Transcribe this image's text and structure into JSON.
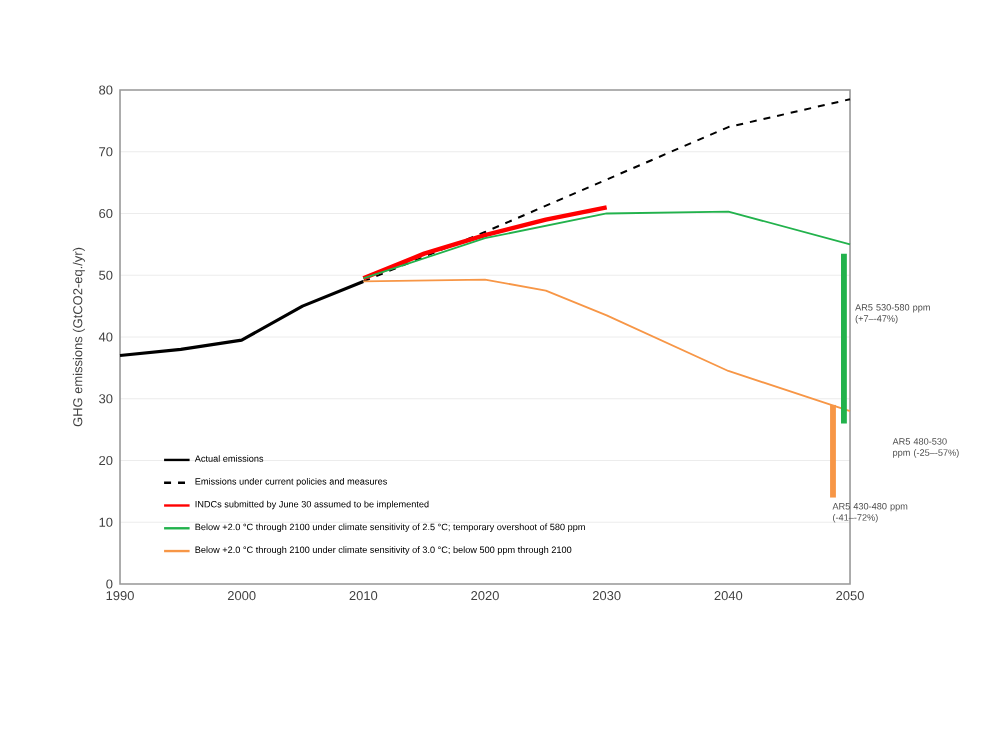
{
  "chart_data": {
    "type": "line",
    "ylabel": "GHG emissions (GtCO2-eq./yr)",
    "xlim": [
      1990,
      2050
    ],
    "xticks": [
      1990,
      2000,
      2010,
      2020,
      2030,
      2040,
      2050
    ],
    "ylim": [
      0,
      80
    ],
    "yticks": [
      0,
      10,
      20,
      30,
      40,
      50,
      60,
      70,
      80
    ],
    "grid": "y",
    "legend": "bottom left",
    "series": [
      {
        "name": "Actual emissions",
        "color": "#000000",
        "x": [
          1990,
          1995,
          2000,
          2005,
          2010
        ],
        "values": [
          37,
          38,
          39.5,
          45,
          49
        ]
      },
      {
        "name": "Emissions under current policies and measures",
        "color": "#000000",
        "line_style": "dashed",
        "x": [
          2010,
          2020,
          2030,
          2040,
          2050
        ],
        "values": [
          49,
          57,
          65.5,
          74,
          78.5
        ]
      },
      {
        "name": "INDCs submitted by June 30 assumed to be implemented",
        "color": "#ff0000",
        "x": [
          2010,
          2015,
          2020,
          2025,
          2030
        ],
        "values": [
          49.5,
          53.5,
          56.5,
          59,
          61
        ]
      },
      {
        "name": "Below +2.0 °C through 2100 under climate sensitivity of 2.5 °C; temporary overshoot of 580 ppm",
        "color": "#22b24c",
        "x": [
          2010,
          2020,
          2030,
          2040,
          2050
        ],
        "values": [
          49.5,
          56,
          60,
          60.3,
          55
        ]
      },
      {
        "name": "Below +2.0 °C through 2100 under climate sensitivity of 3.0 °C; below 500 ppm through 2100",
        "color": "#f79646",
        "x": [
          2010,
          2020,
          2025,
          2030,
          2040,
          2050
        ],
        "values": [
          49,
          49.3,
          47.5,
          43.5,
          34.5,
          28
        ]
      },
      {
        "type": "bar",
        "name": "AR5 530-580 ppm (+7–-47%)",
        "color": "#22b24c",
        "x": [
          2049.5
        ],
        "base": [
          26
        ],
        "values": [
          27.5
        ]
      },
      {
        "type": "bar",
        "name": "AR5 430-480 ppm (-41–-72%)",
        "color": "#f79646",
        "x": [
          2048.6
        ],
        "base": [
          14
        ],
        "values": [
          15
        ]
      }
    ],
    "annotations": [
      "AR5 480-530 ppm (-25–-57%)"
    ]
  }
}
